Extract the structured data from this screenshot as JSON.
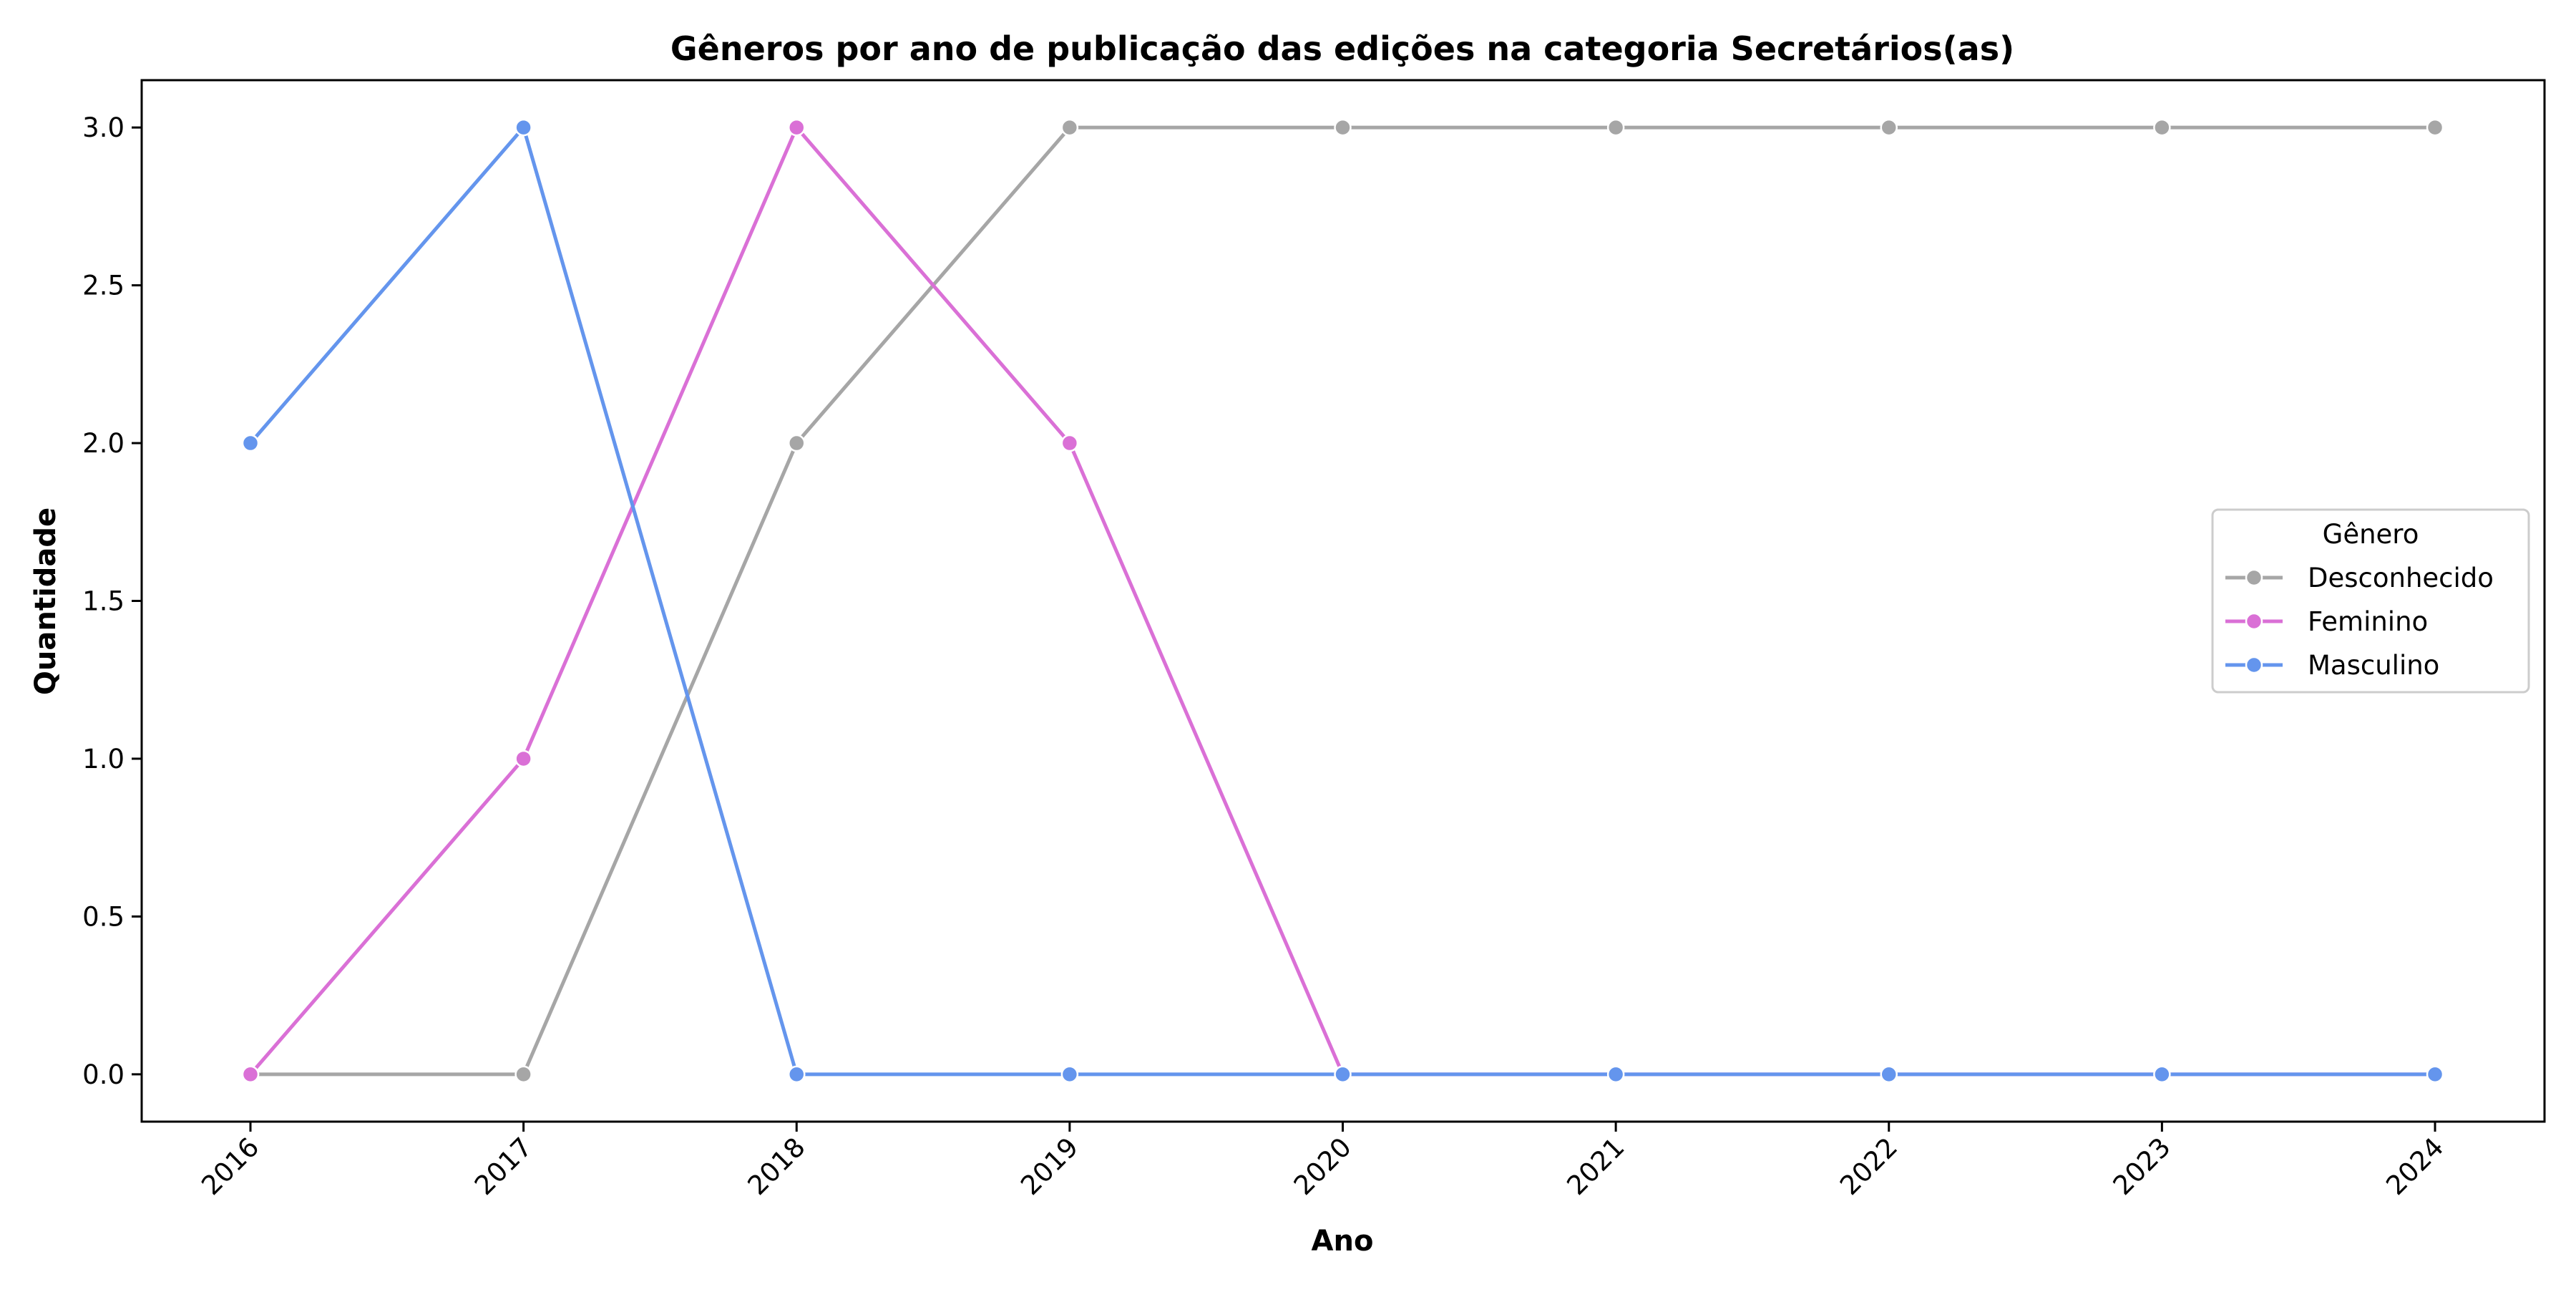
{
  "chart_data": {
    "type": "line",
    "title": "Gêneros por ano de publicação das edições na categoria Secretários(as)",
    "xlabel": "Ano",
    "ylabel": "Quantidade",
    "x": [
      "2016",
      "2017",
      "2018",
      "2019",
      "2020",
      "2021",
      "2022",
      "2023",
      "2024"
    ],
    "yticks": [
      "0.0",
      "0.5",
      "1.0",
      "1.5",
      "2.0",
      "2.5",
      "3.0"
    ],
    "ylim": [
      -0.15,
      3.15
    ],
    "grid": false,
    "legend": {
      "title": "Gênero",
      "placement": "center-right"
    },
    "series": [
      {
        "name": "Desconhecido",
        "color": "#a6a6a6",
        "values": [
          0,
          0,
          2,
          3,
          3,
          3,
          3,
          3,
          3
        ]
      },
      {
        "name": "Feminino",
        "color": "#da70d6",
        "values": [
          0,
          1,
          3,
          2,
          0,
          0,
          0,
          0,
          0
        ]
      },
      {
        "name": "Masculino",
        "color": "#6495ed",
        "values": [
          2,
          3,
          0,
          0,
          0,
          0,
          0,
          0,
          0
        ]
      }
    ]
  }
}
